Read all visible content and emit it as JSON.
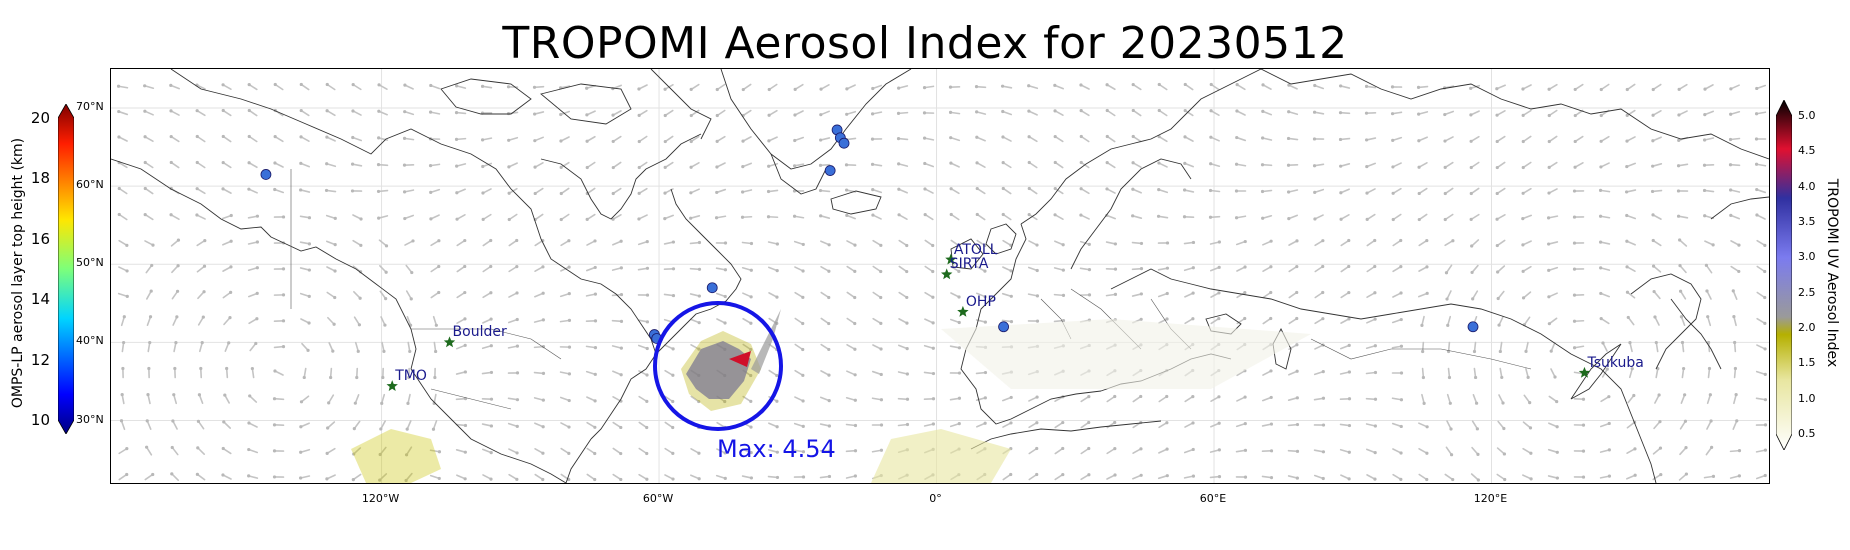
{
  "title": "TROPOMI Aerosol Index for 20230512",
  "max_label": "Max: 4.54",
  "lon_labels": [
    "120°W",
    "60°W",
    "0°",
    "60°E",
    "120°E"
  ],
  "lat_labels": [
    "70°N",
    "60°N",
    "50°N",
    "40°N",
    "30°N"
  ],
  "left_colorbar": {
    "label": "OMPS-LP aerosol layer top height (km)",
    "ticks": [
      "20",
      "18",
      "16",
      "14",
      "12",
      "10"
    ],
    "range": [
      10,
      20
    ]
  },
  "right_colorbar": {
    "label": "TROPOMI UV Aerosol Index",
    "ticks": [
      "5.0",
      "4.5",
      "4.0",
      "3.5",
      "3.0",
      "2.5",
      "2.0",
      "1.5",
      "1.0",
      "0.5"
    ],
    "range": [
      0.5,
      5.0
    ]
  },
  "sites": [
    {
      "name": "ATOLL",
      "lon": 3.1,
      "lat": 50.6
    },
    {
      "name": "SIRTA",
      "lon": 2.2,
      "lat": 48.7
    },
    {
      "name": "OHP",
      "lon": 5.7,
      "lat": 43.9
    },
    {
      "name": "Boulder",
      "lon": -105.3,
      "lat": 40.0
    },
    {
      "name": "TMO",
      "lon": -117.7,
      "lat": 34.4
    },
    {
      "name": "Tsukuba",
      "lon": 140.1,
      "lat": 36.1
    }
  ],
  "omps_points": [
    {
      "lon": -145,
      "lat": 61.5
    },
    {
      "lon": -21.5,
      "lat": 67.2
    },
    {
      "lon": -20.8,
      "lat": 66.2
    },
    {
      "lon": -20.0,
      "lat": 65.5
    },
    {
      "lon": -23,
      "lat": 62.0
    },
    {
      "lon": -48.5,
      "lat": 47.0
    },
    {
      "lon": -61,
      "lat": 41.0
    },
    {
      "lon": -60.5,
      "lat": 40.5
    },
    {
      "lon": 14.5,
      "lat": 42.0
    },
    {
      "lon": 116,
      "lat": 42.0
    }
  ],
  "legend_colors": {
    "circle": "#1515e6",
    "site_marker": "#1e6b1e",
    "site_label": "#1a1a8c",
    "omps_point": "#3a6fd8"
  }
}
